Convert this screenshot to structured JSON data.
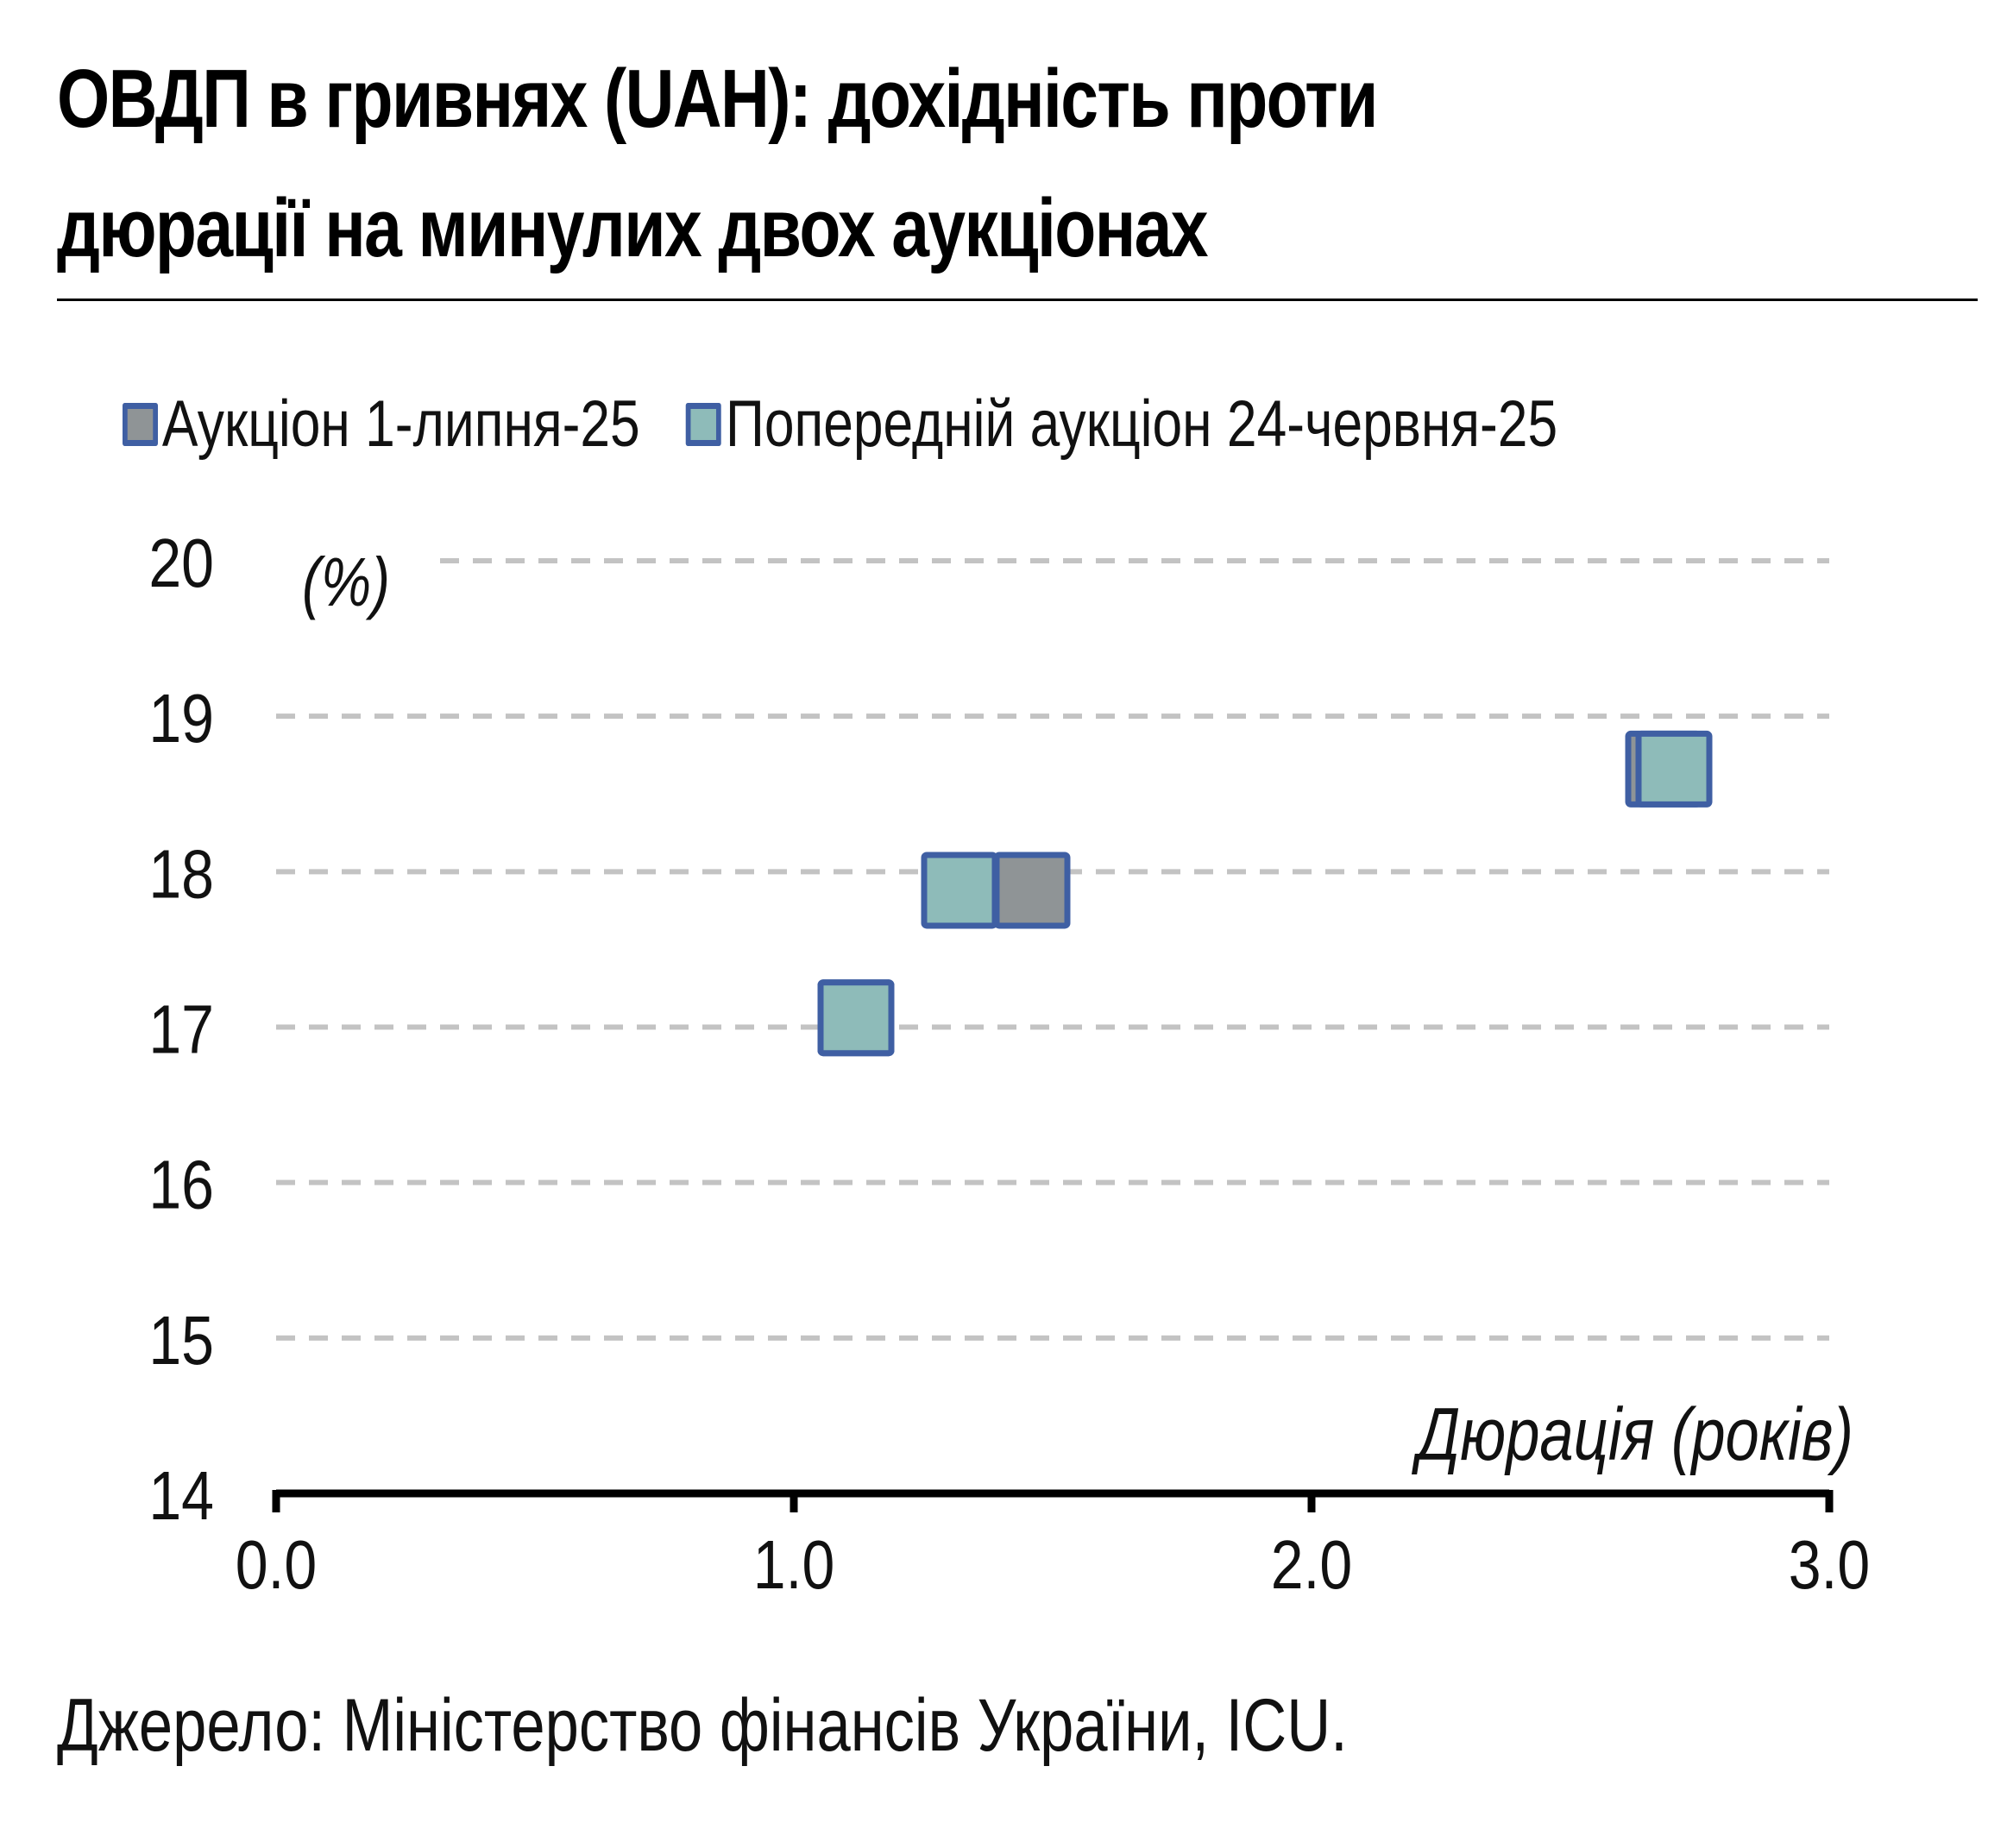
{
  "title": "ОВДП в гривнях (UAH): дохідність проти дюрації на минулих двох аукціонах",
  "source": "Джерело: Міністерство фінансів України, ICU.",
  "colors": {
    "marker_border": "#3f5fa3",
    "current_fill": "#8f9496",
    "previous_fill": "#8ebbb9",
    "grid": "#c3c3c3",
    "axis": "#000000"
  },
  "chart_data": {
    "type": "scatter",
    "title": "ОВДП в гривнях (UAH): дохідність проти дюрації на минулих двох аукціонах",
    "xlabel": "Дюрація (років)",
    "ylabel": "(%)",
    "xlim": [
      0,
      3
    ],
    "ylim": [
      14,
      20
    ],
    "x_ticks": [
      "0.0",
      "1.0",
      "2.0",
      "3.0"
    ],
    "y_ticks": [
      "20",
      "19",
      "18",
      "17",
      "16",
      "15",
      "14"
    ],
    "grid": true,
    "grid_style": "dashed horizontal",
    "legend_position": "top",
    "series": [
      {
        "name": "Аукціон 1-липня-25",
        "color": "#8f9496",
        "marker": "square",
        "points": [
          {
            "x": 1.12,
            "y": 17.06
          },
          {
            "x": 1.46,
            "y": 17.88
          },
          {
            "x": 2.68,
            "y": 18.66
          }
        ]
      },
      {
        "name": "Попередній аукціон 24-червня-25",
        "color": "#8ebbb9",
        "marker": "square",
        "points": [
          {
            "x": 1.12,
            "y": 17.06
          },
          {
            "x": 1.32,
            "y": 17.88
          },
          {
            "x": 2.7,
            "y": 18.66
          }
        ]
      }
    ]
  }
}
